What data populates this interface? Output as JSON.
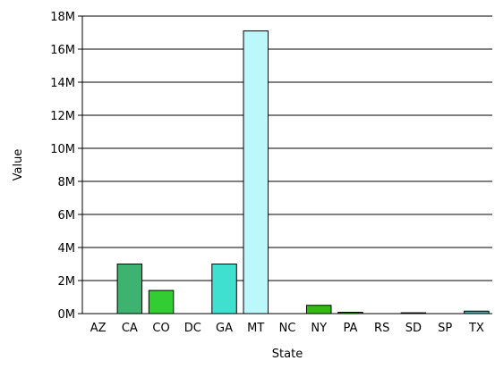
{
  "chart_data": {
    "type": "bar",
    "xlabel": "State",
    "ylabel": "Value",
    "categories": [
      "AZ",
      "CA",
      "CO",
      "DC",
      "GA",
      "MT",
      "NC",
      "NY",
      "PA",
      "RS",
      "SD",
      "SP",
      "TX"
    ],
    "values": [
      0,
      3000000,
      1400000,
      0,
      3000000,
      17100000,
      0,
      500000,
      80000,
      0,
      50000,
      0,
      150000
    ],
    "bar_colors": [
      "#2e8b57",
      "#3cb371",
      "#32cd32",
      "#2e8b57",
      "#40e0d0",
      "#bbf7fb",
      "#2e8b57",
      "#33bb11",
      "#3aa52a",
      "#2e8b57",
      "#3aa52a",
      "#2e8b57",
      "#33b8a8"
    ],
    "ylim": [
      0,
      18000000
    ],
    "yticks": [
      0,
      2000000,
      4000000,
      6000000,
      8000000,
      10000000,
      12000000,
      14000000,
      16000000,
      18000000
    ],
    "ytick_labels": [
      "0M",
      "2M",
      "4M",
      "6M",
      "8M",
      "10M",
      "12M",
      "14M",
      "16M",
      "18M"
    ],
    "grid": true,
    "legend": false
  }
}
